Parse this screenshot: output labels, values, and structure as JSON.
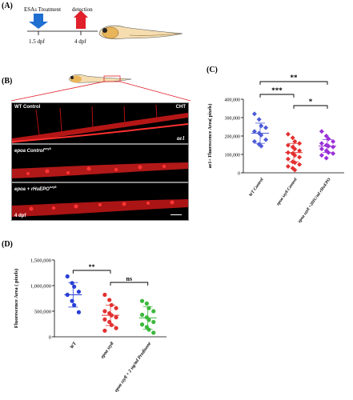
{
  "panel_a": {
    "label": "(A)",
    "treatment_label": "ESAs Treatment",
    "detection_label": "detection",
    "time1": "1.5 dpf",
    "time2": "4 dpf",
    "colors": {
      "treatment_arrow": "#1f6fd1",
      "detection_arrow": "#e0202a"
    }
  },
  "panel_b": {
    "label": "(B)",
    "images": [
      {
        "label": "WT Control",
        "corner": "CHT",
        "gene": "ae1"
      },
      {
        "label": "epoa Control",
        "label_sup": "szy8"
      },
      {
        "label": "epoa + rHuEPO",
        "label_sup": "szy8",
        "stage": "4 dpf"
      }
    ]
  },
  "panel_c": {
    "label": "(C)",
    "chart_data": {
      "type": "scatter",
      "ylabel": "ae1+ Fluorescence Area( pixels)",
      "ylim": [
        0,
        400000
      ],
      "yticks": [
        "0",
        "100,000",
        "200,000",
        "300,000",
        "400,000"
      ],
      "groups": [
        {
          "name": "WT Control",
          "color": "#4c5bd6",
          "mean": 215000,
          "sd": 55000,
          "values": [
            320000,
            290000,
            255000,
            245000,
            225000,
            215000,
            205000,
            180000,
            170000,
            155000,
            145000
          ]
        },
        {
          "name": "epoa szy8 Control",
          "color": "#e33030",
          "mean": 110000,
          "sd": 50000,
          "values": [
            210000,
            190000,
            170000,
            160000,
            150000,
            140000,
            130000,
            120000,
            110000,
            105000,
            95000,
            85000,
            75000,
            60000,
            55000,
            45000,
            35000,
            25000,
            15000
          ]
        },
        {
          "name": "epoa szy8 +20IU/ml rHuEPO",
          "color": "#9b30d9",
          "mean": 145000,
          "sd": 35000,
          "values": [
            225000,
            200000,
            185000,
            170000,
            160000,
            150000,
            145000,
            140000,
            130000,
            120000,
            110000,
            105000,
            95000,
            80000
          ]
        }
      ],
      "significance": [
        {
          "pair": [
            0,
            2
          ],
          "text": "**"
        },
        {
          "pair": [
            0,
            1
          ],
          "text": "***"
        },
        {
          "pair": [
            1,
            2
          ],
          "text": "*"
        }
      ]
    }
  },
  "panel_d": {
    "label": "(D)",
    "chart_data": {
      "type": "scatter",
      "ylabel": "Fluorescence Area ( pixels)",
      "ylim": [
        0,
        1500000
      ],
      "yticks": [
        "0",
        "500,000",
        "1,000,000",
        "1,500,000"
      ],
      "groups": [
        {
          "name": "WT",
          "color": "#2a3fd6",
          "mean": 820000,
          "sd": 240000,
          "values": [
            1180000,
            1050000,
            980000,
            880000,
            820000,
            700000,
            620000,
            480000
          ]
        },
        {
          "name": "epoa szy8",
          "color": "#e33030",
          "mean": 420000,
          "sd": 200000,
          "values": [
            820000,
            720000,
            620000,
            560000,
            500000,
            460000,
            420000,
            380000,
            340000,
            290000,
            230000,
            170000,
            120000
          ]
        },
        {
          "name": "epoa szy8 + 2 ug/ml Predisone",
          "color": "#3cb83c",
          "mean": 370000,
          "sd": 220000,
          "values": [
            700000,
            650000,
            560000,
            500000,
            430000,
            380000,
            330000,
            290000,
            240000,
            190000,
            140000,
            80000
          ]
        }
      ],
      "significance": [
        {
          "pair": [
            0,
            1
          ],
          "text": "**"
        },
        {
          "pair": [
            1,
            2
          ],
          "text": "ns"
        }
      ]
    }
  }
}
